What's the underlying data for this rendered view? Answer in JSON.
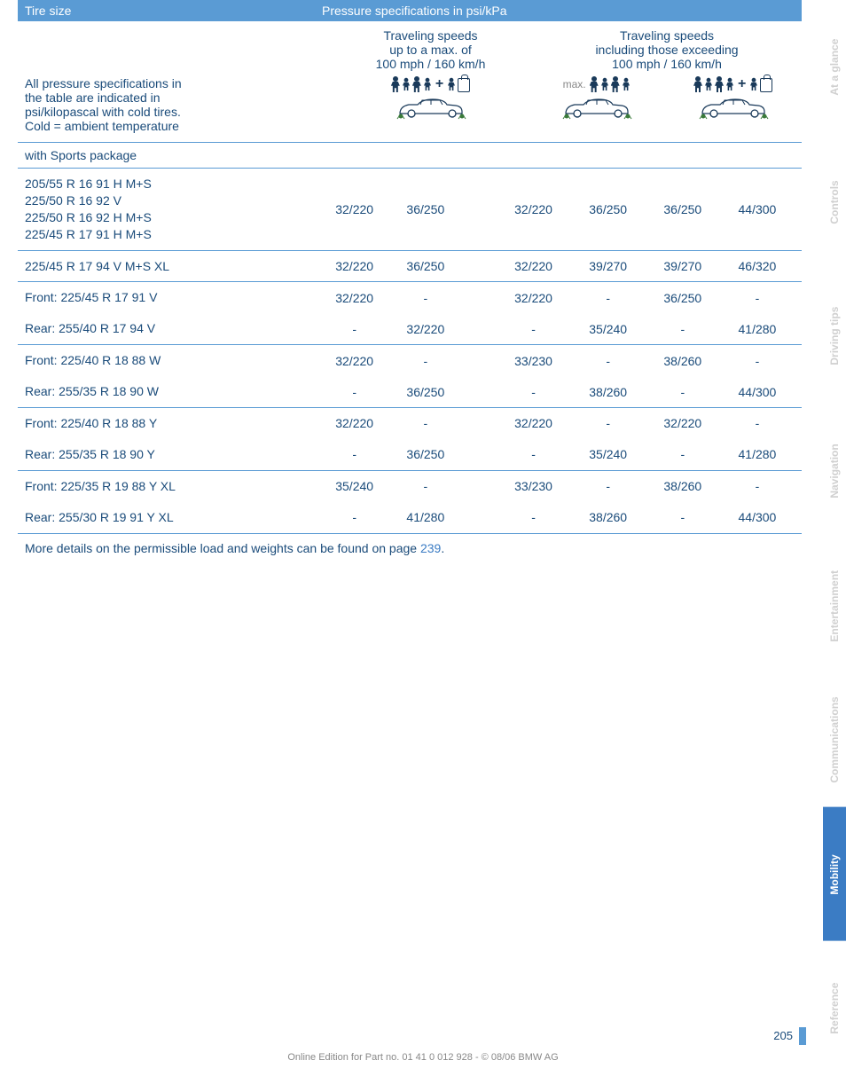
{
  "header": {
    "tire_size": "Tire size",
    "pressure_spec": "Pressure specifications in psi/kPa"
  },
  "col_labels": {
    "left1": "Traveling speeds",
    "left2": "up to a max. of",
    "left3": "100 mph / 160 km/h",
    "right1": "Traveling speeds",
    "right2": "including those exceeding",
    "right3": "100 mph / 160 km/h"
  },
  "note": {
    "l1": "All pressure specifications in",
    "l2": "the table are indicated in",
    "l3": "psi/kilopascal with cold tires.",
    "l4": "Cold = ambient temperature"
  },
  "section": "with Sports package",
  "rows": [
    {
      "labels": [
        "205/55 R 16 91 H M+S",
        "225/50 R 16 92 V",
        "225/50 R 16 92 H M+S",
        "225/45 R 17 91 H M+S"
      ],
      "v": [
        "32/220",
        "36/250",
        "32/220",
        "36/250",
        "36/250",
        "44/300"
      ]
    },
    {
      "labels": [
        "225/45 R 17 94 V M+S XL"
      ],
      "v": [
        "32/220",
        "36/250",
        "32/220",
        "39/270",
        "39/270",
        "46/320"
      ]
    },
    {
      "labels": [
        "Front: 225/45 R 17 91 V"
      ],
      "v": [
        "32/220",
        "-",
        "32/220",
        "-",
        "36/250",
        "-"
      ]
    },
    {
      "labels": [
        "Rear: 255/40 R 17 94 V"
      ],
      "v": [
        "-",
        "32/220",
        "-",
        "35/240",
        "-",
        "41/280"
      ]
    },
    {
      "labels": [
        "Front: 225/40 R 18 88 W"
      ],
      "v": [
        "32/220",
        "-",
        "33/230",
        "-",
        "38/260",
        "-"
      ]
    },
    {
      "labels": [
        "Rear: 255/35 R 18 90 W"
      ],
      "v": [
        "-",
        "36/250",
        "-",
        "38/260",
        "-",
        "44/300"
      ]
    },
    {
      "labels": [
        "Front: 225/40 R 18 88 Y"
      ],
      "v": [
        "32/220",
        "-",
        "32/220",
        "-",
        "32/220",
        "-"
      ]
    },
    {
      "labels": [
        "Rear: 255/35 R 18 90 Y"
      ],
      "v": [
        "-",
        "36/250",
        "-",
        "35/240",
        "-",
        "41/280"
      ]
    },
    {
      "labels": [
        "Front: 225/35 R 19 88 Y XL"
      ],
      "v": [
        "35/240",
        "-",
        "33/230",
        "-",
        "38/260",
        "-"
      ]
    },
    {
      "labels": [
        "Rear: 255/30 R 19 91 Y XL"
      ],
      "v": [
        "-",
        "41/280",
        "-",
        "38/260",
        "-",
        "44/300"
      ]
    }
  ],
  "row_borders": [
    true,
    true,
    true,
    false,
    true,
    false,
    true,
    false,
    true,
    false
  ],
  "footnote": {
    "text": "More details on the permissible load and weights can be found on page ",
    "link": "239",
    "suffix": "."
  },
  "tabs": [
    "At a glance",
    "Controls",
    "Driving tips",
    "Navigation",
    "Entertainment",
    "Communications",
    "Mobility",
    "Reference"
  ],
  "active_tab": 6,
  "page_number": "205",
  "footer": "Online Edition for Part no. 01 41 0 012 928 - © 08/06 BMW AG",
  "max_label": "max.",
  "colors": {
    "header_bg": "#5a9bd4",
    "text": "#1a4b7a",
    "link": "#3b7cc4",
    "tab_active": "#3b7cc4",
    "tab_inactive_text": "#d0d0d0"
  }
}
